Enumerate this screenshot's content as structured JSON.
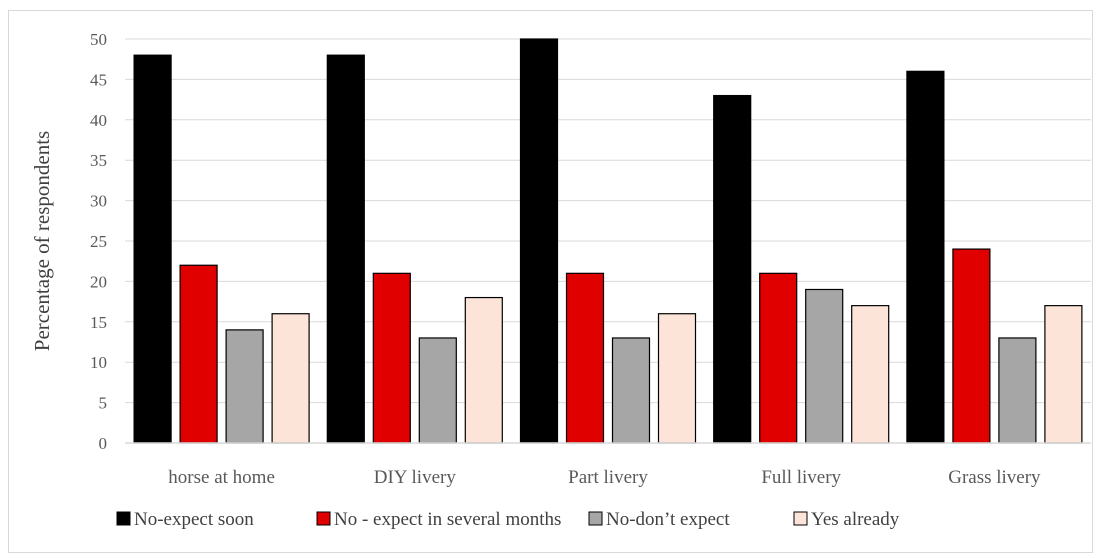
{
  "chart_data": {
    "type": "bar",
    "title": "",
    "xlabel": "",
    "ylabel": "Percentage of respondents",
    "ylim": [
      0,
      50
    ],
    "ytick_step": 5,
    "grid": true,
    "legend_position": "bottom",
    "categories": [
      "horse at home",
      "DIY livery",
      "Part livery",
      "Full livery",
      "Grass livery"
    ],
    "series": [
      {
        "name": "No-expect soon",
        "color": "#000000",
        "values": [
          48,
          48,
          50,
          43,
          46
        ]
      },
      {
        "name": "No - expect in several months",
        "color": "#e00000",
        "values": [
          22,
          21,
          21,
          21,
          24
        ]
      },
      {
        "name": "No-don’t expect",
        "color": "#a6a6a6",
        "values": [
          14,
          13,
          13,
          19,
          13
        ]
      },
      {
        "name": "Yes already",
        "color": "#fde4d8",
        "values": [
          16,
          18,
          16,
          17,
          17
        ]
      }
    ]
  }
}
